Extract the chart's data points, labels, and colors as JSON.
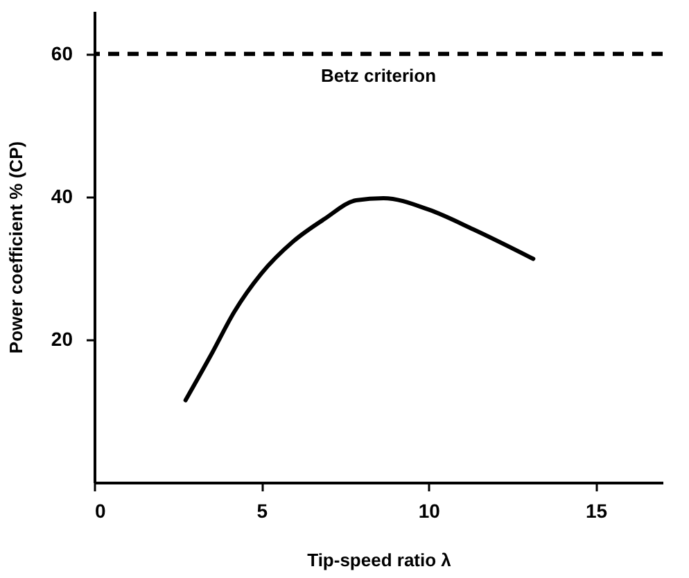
{
  "chart_data": {
    "type": "line",
    "xlabel": "Tip-speed ratio λ",
    "ylabel": "Power coefficient % (CP)",
    "x": [
      2.73,
      3.51,
      4.19,
      4.99,
      5.94,
      6.89,
      7.83,
      8.65,
      10.0,
      11.35,
      13.13
    ],
    "series": [
      {
        "color": "#000000",
        "values": [
          11.5,
          18.0,
          23.9,
          29.2,
          33.7,
          36.9,
          39.5,
          39.8,
          38.2,
          35.4,
          31.3
        ]
      }
    ],
    "xlim": [
      0,
      17
    ],
    "ylim": [
      0,
      66
    ],
    "xticks": [
      0,
      5,
      10,
      15
    ],
    "yticks": [
      20,
      40,
      60
    ],
    "ref_lines": [
      {
        "axis": "y",
        "value": 60,
        "label": "Betz criterion",
        "color": "#000000",
        "line_style": "dashed"
      }
    ],
    "grid": false,
    "marker": "none",
    "line_style": "solid"
  }
}
